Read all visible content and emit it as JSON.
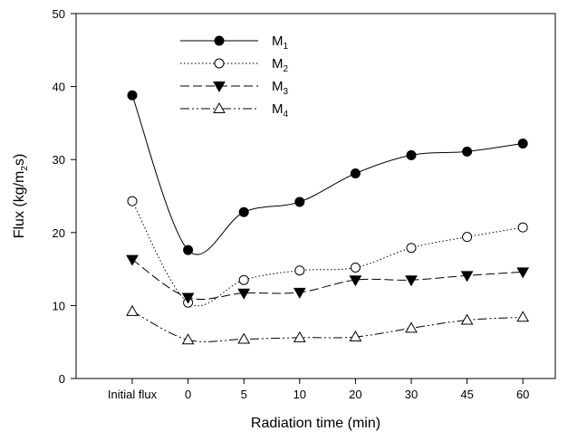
{
  "chart_data": {
    "type": "line",
    "title": "",
    "xlabel": "Radiation time (min)",
    "ylabel_main": "Flux (kg/m",
    "ylabel_sub": "2",
    "ylabel_end": "s)",
    "categories": [
      "Initial flux",
      "0",
      "5",
      "10",
      "20",
      "30",
      "45",
      "60"
    ],
    "ylim": [
      0,
      50
    ],
    "yticks": [
      0,
      10,
      20,
      30,
      40,
      50
    ],
    "grid": false,
    "legend_position": "top-left",
    "series": [
      {
        "name": "M",
        "sub": "1",
        "marker": "circle-filled",
        "dash": "solid",
        "values": [
          38.8,
          17.6,
          22.8,
          24.2,
          28.1,
          30.6,
          31.1,
          32.2
        ]
      },
      {
        "name": "M",
        "sub": "2",
        "marker": "circle-open",
        "dash": "dotted",
        "values": [
          24.3,
          10.4,
          13.5,
          14.8,
          15.2,
          17.9,
          19.4,
          20.7
        ]
      },
      {
        "name": "M",
        "sub": "3",
        "marker": "triangle-down-filled",
        "dash": "dashed",
        "values": [
          16.3,
          11.1,
          11.7,
          11.8,
          13.5,
          13.5,
          14.1,
          14.6
        ]
      },
      {
        "name": "M",
        "sub": "4",
        "marker": "triangle-up-open",
        "dash": "dashdotdot",
        "values": [
          9.2,
          5.3,
          5.4,
          5.6,
          5.7,
          6.9,
          8.0,
          8.4
        ]
      }
    ]
  }
}
